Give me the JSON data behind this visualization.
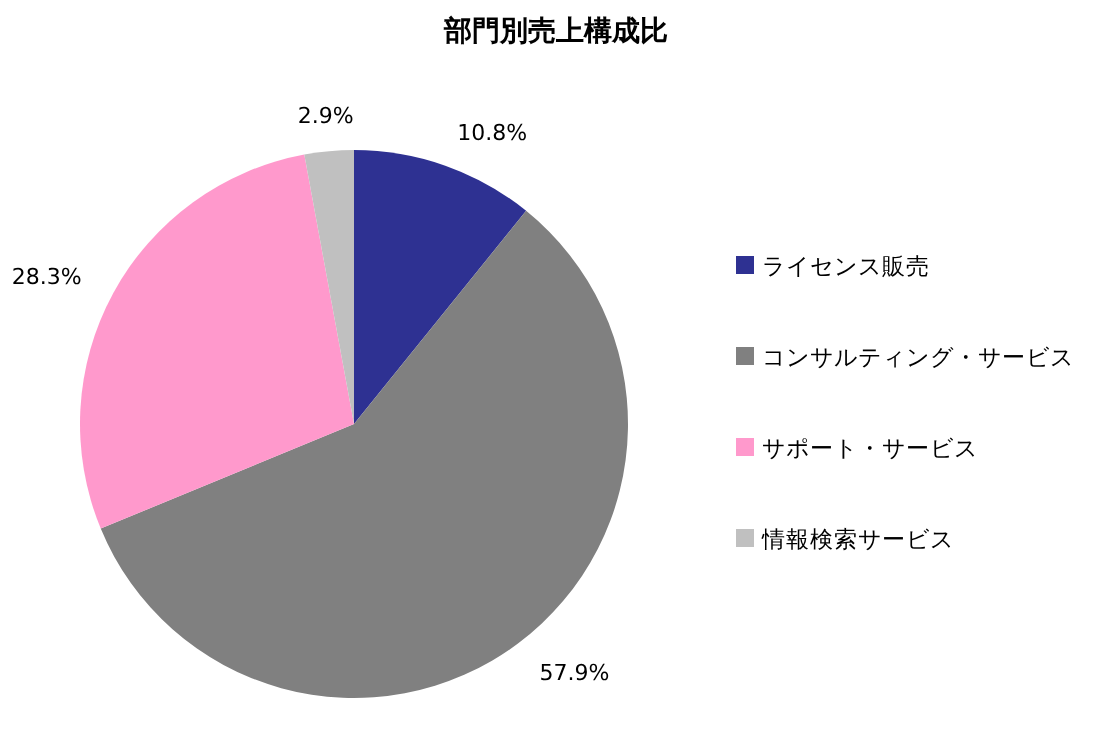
{
  "chart_data": {
    "type": "pie",
    "title": "部門別売上構成比",
    "categories": [
      "ライセンス販売",
      "コンサルティング・サービス",
      "サポート・サービス",
      "情報検索サービス"
    ],
    "values": [
      10.8,
      57.9,
      28.3,
      2.9
    ],
    "colors": [
      "#2e3192",
      "#808080",
      "#ff99cc",
      "#c0c0c0"
    ],
    "value_labels": [
      "10.8%",
      "57.9%",
      "28.3%",
      "2.9%"
    ],
    "legend": "right"
  }
}
